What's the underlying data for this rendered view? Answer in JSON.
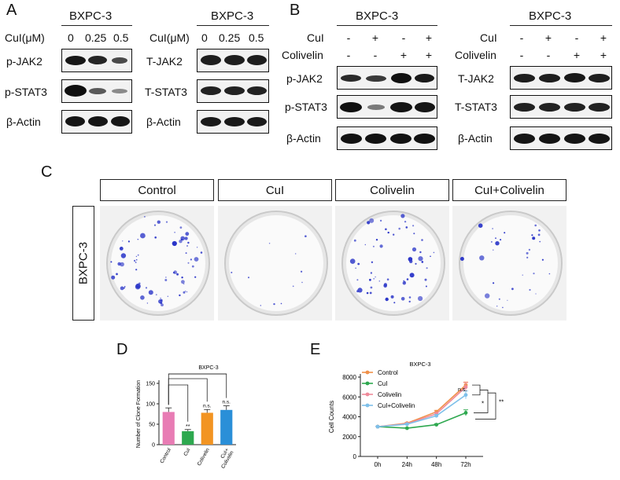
{
  "panelA": {
    "letter": "A",
    "left": {
      "cell_line": "BXPC-3",
      "dose_label": "CuI(μM)",
      "doses": [
        "0",
        "0.25",
        "0.5"
      ],
      "rows": [
        "p-JAK2",
        "p-STAT3",
        "β-Actin"
      ]
    },
    "right": {
      "cell_line": "BXPC-3",
      "dose_label": "CuI(μM)",
      "doses": [
        "0",
        "0.25",
        "0.5"
      ],
      "rows": [
        "T-JAK2",
        "T-STAT3",
        "β-Actin"
      ]
    }
  },
  "panelB": {
    "letter": "B",
    "left": {
      "cell_line": "BXPC-3",
      "treatments": [
        {
          "name": "CuI",
          "signs": [
            "-",
            "+",
            "-",
            "+"
          ]
        },
        {
          "name": "Colivelin",
          "signs": [
            "-",
            "-",
            "+",
            "+"
          ]
        }
      ],
      "rows": [
        "p-JAK2",
        "p-STAT3",
        "β-Actin"
      ]
    },
    "right": {
      "cell_line": "BXPC-3",
      "treatments": [
        {
          "name": "CuI",
          "signs": [
            "-",
            "+",
            "-",
            "+"
          ]
        },
        {
          "name": "Colivelin",
          "signs": [
            "-",
            "-",
            "+",
            "+"
          ]
        }
      ],
      "rows": [
        "T-JAK2",
        "T-STAT3",
        "β-Actin"
      ]
    }
  },
  "panelC": {
    "letter": "C",
    "row_label": "BXPC-3",
    "columns": [
      "Control",
      "CuI",
      "Colivelin",
      "CuI+Colivelin"
    ],
    "colony_density": [
      1.0,
      0.15,
      0.85,
      0.45
    ],
    "stain_color": "#2a35c8"
  },
  "panelD": {
    "letter": "D"
  },
  "panelE": {
    "letter": "E"
  },
  "chart_data": [
    {
      "type": "bar",
      "title": "BXPC-3",
      "ylabel": "Number of Clone Formation",
      "xlabel": "",
      "categories": [
        "Control",
        "CuI",
        "Colivelin",
        "CuI+\nColivelin"
      ],
      "values": [
        80,
        33,
        78,
        85
      ],
      "errors": [
        10,
        4,
        8,
        10
      ],
      "colors": [
        "#e87cb4",
        "#2ea84f",
        "#f29422",
        "#2a8fd8"
      ],
      "ylim": [
        0,
        150
      ],
      "yticks": [
        0,
        50,
        100,
        150
      ],
      "annotations": [
        "**",
        "n.s.",
        "n.s."
      ]
    },
    {
      "type": "line",
      "title": "BXPC-3",
      "ylabel": "Cell Counts",
      "xlabel": "",
      "x": [
        "0h",
        "24h",
        "48h",
        "72h"
      ],
      "ylim": [
        0,
        8000
      ],
      "yticks": [
        0,
        2000,
        4000,
        6000,
        8000
      ],
      "legend_position": "top-left",
      "series": [
        {
          "name": "Control",
          "color": "#f0914a",
          "values": [
            3000,
            3350,
            4500,
            7200
          ],
          "errors": [
            50,
            80,
            150,
            300
          ]
        },
        {
          "name": "CuI",
          "color": "#2ea84f",
          "values": [
            3000,
            2850,
            3200,
            4400
          ],
          "errors": [
            50,
            60,
            100,
            300
          ]
        },
        {
          "name": "Colivelin",
          "color": "#ef8a9a",
          "values": [
            3000,
            3300,
            4300,
            7000
          ],
          "errors": [
            50,
            70,
            150,
            450
          ]
        },
        {
          "name": "CuI+Colivelin",
          "color": "#7ec0ea",
          "values": [
            3000,
            3250,
            4100,
            6200
          ],
          "errors": [
            50,
            70,
            140,
            400
          ]
        }
      ],
      "annotations": [
        "n.s.",
        "*",
        "**"
      ]
    }
  ]
}
